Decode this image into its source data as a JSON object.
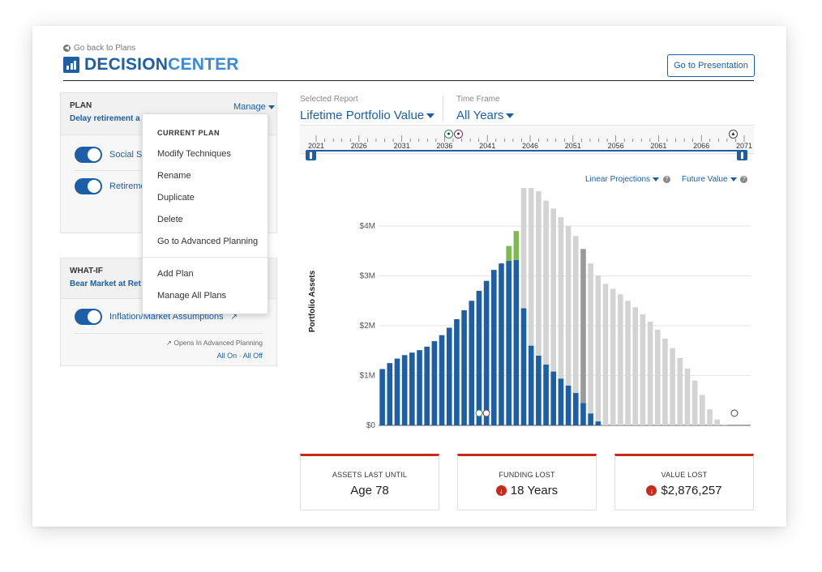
{
  "header": {
    "back_label": "Go back to Plans",
    "logo_part1": "DECISION",
    "logo_part2": "CENTER",
    "presentation_button": "Go to Presentation"
  },
  "plan": {
    "title": "PLAN",
    "name": "Delay retirement a",
    "manage_label": "Manage",
    "toggles": [
      {
        "label": "Social Se",
        "on": true
      },
      {
        "label": "Retireme",
        "on": true
      }
    ]
  },
  "manage_menu": {
    "header": "CURRENT PLAN",
    "items": [
      "Modify Techniques",
      "Rename",
      "Duplicate",
      "Delete",
      "Go to Advanced Planning"
    ],
    "items2": [
      "Add Plan",
      "Manage All Plans"
    ]
  },
  "whatif": {
    "title": "WHAT-IF",
    "name": "Bear Market at Ret",
    "toggle_label": "Inflation/Market Assumptions",
    "opens_note": "Opens In Advanced Planning",
    "all_on": "All On",
    "all_off": "All Off",
    "dot": "·"
  },
  "report": {
    "selected_label": "Selected Report",
    "selected_value": "Lifetime Portfolio Value",
    "timeframe_label": "Time Frame",
    "timeframe_value": "All Years",
    "projections": "Linear Projections",
    "future_value": "Future Value"
  },
  "timeline": {
    "ticks": [
      "2021",
      "2026",
      "2031",
      "2036",
      "2041",
      "2046",
      "2051",
      "2056",
      "2061",
      "2066",
      "2071"
    ]
  },
  "chart_data": {
    "type": "bar",
    "ylabel": "Portfolio Assets",
    "ylim": [
      0,
      4000000
    ],
    "yticks": [
      "$0",
      "$1M",
      "$2M",
      "$3M",
      "$4M"
    ],
    "xticks": [
      "2021",
      "2026",
      "2031",
      "2036",
      "2041",
      "2046",
      "2051",
      "2056",
      "2061",
      "2066",
      "2071"
    ],
    "start_year": 2021,
    "series": [
      {
        "name": "Portfolio Assets",
        "color": "#1d5fa6",
        "values": [
          1130000,
          1250000,
          1340000,
          1410000,
          1460000,
          1510000,
          1580000,
          1690000,
          1810000,
          1960000,
          2130000,
          2310000,
          2500000,
          2700000,
          2900000,
          3120000,
          3250000,
          3300000,
          3320000,
          2350000,
          1600000,
          1400000,
          1220000,
          1080000,
          940000,
          800000,
          650000,
          450000,
          240000,
          80000,
          0,
          0,
          0,
          0,
          0,
          0,
          0,
          0,
          0,
          0,
          0,
          0,
          0,
          0,
          0,
          0,
          0,
          0,
          0,
          0
        ]
      },
      {
        "name": "Additional",
        "color": "#7dbb4e",
        "values": [
          0,
          0,
          0,
          0,
          0,
          0,
          0,
          0,
          0,
          0,
          0,
          0,
          0,
          0,
          0,
          0,
          0,
          300000,
          580000,
          0,
          0,
          0,
          0,
          0,
          0,
          0,
          0,
          0,
          0,
          0,
          0,
          0,
          0,
          0,
          0,
          0,
          0,
          0,
          0,
          0,
          0,
          0,
          0,
          0,
          0,
          0,
          0,
          0,
          0,
          0
        ]
      },
      {
        "name": "Value Lost",
        "color": "#d3d3d3",
        "values": [
          0,
          0,
          0,
          0,
          0,
          0,
          0,
          0,
          0,
          0,
          0,
          0,
          0,
          0,
          0,
          0,
          0,
          0,
          0,
          3320000,
          3310000,
          3300000,
          3290000,
          3270000,
          3240000,
          3200000,
          3150000,
          3090000,
          3010000,
          2930000,
          2840000,
          2740000,
          2630000,
          2500000,
          2370000,
          2230000,
          2080000,
          1920000,
          1740000,
          1550000,
          1350000,
          1140000,
          900000,
          610000,
          320000,
          120000,
          20000,
          0,
          0,
          0
        ]
      }
    ],
    "highlight_index": 27
  },
  "stats": [
    {
      "label": "ASSETS LAST UNTIL",
      "value": "Age 78",
      "icon": false
    },
    {
      "label": "FUNDING LOST",
      "value": "18 Years",
      "icon": true
    },
    {
      "label": "VALUE LOST",
      "value": "$2,876,257",
      "icon": true
    }
  ]
}
